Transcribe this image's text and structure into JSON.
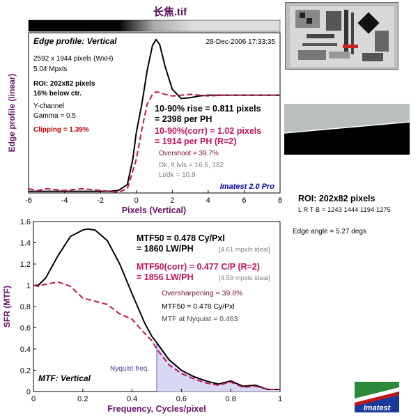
{
  "header": {
    "title": "长焦.tif"
  },
  "edge_chart": {
    "panel_label": "Edge profile: Vertical",
    "timestamp": "28-Dec-2006 17:33:35",
    "info": [
      "2592 x 1944 pixels (WxH)",
      "5.04 Mpxls"
    ],
    "roi_label": "ROI: 202x82 pixels",
    "roi_pos": "16% below ctr.",
    "channel": "Y-channel",
    "gamma": "Gamma = 0.5",
    "clipping": "Clipping =   1.39%",
    "rise1": "10-90% rise = 0.811 pixels",
    "rise2": "= 2398 per PH",
    "corr1": "10-90%(corr) = 1.02 pixels",
    "corr2": "= 1914 per PH   (R=2)",
    "overshoot": "Overshoot = 39.7%",
    "dk": "Dk, lt lvls = 16.6, 182",
    "ltdk": "Lt/dk = 10.9",
    "brand": "Imatest 2.0 Pro"
  },
  "mtf_chart": {
    "panel_label": "MTF: Vertical",
    "mtf50_1": "MTF50 = 0.478 Cy/Pxl",
    "mtf50_2": "= 1860 LW/PH",
    "mtf50_ideal": "[4.61 mpxls ideal]",
    "corr1": "MTF50(corr) = 0.477 C/P   (R=2)",
    "corr2": "= 1856 LW/PH",
    "corr_ideal": "[4.59 mpxls ideal]",
    "oversharp": "Oversharpening = 39.8%",
    "mtf50_small": "MTF50 = 0.478 Cy/Pxl",
    "nyq_mtf": "MTF at Nyquist = 0.463",
    "nyquist_label": "Nyquist freq."
  },
  "side": {
    "roi_head": "ROI: 202x82 pixels",
    "roi_coords": "L R  T B = 1243 1444   1194 1275",
    "edge_angle": "Edge angle = 5.27 degs",
    "logo_text": "Imatest"
  },
  "chart_data": [
    {
      "type": "line",
      "title": "",
      "xlabel": "Pixels (Vertical)",
      "ylabel": "Edge profile (linear)",
      "xlim": [
        -6,
        8
      ],
      "ylim": [
        0,
        1.9
      ],
      "x_ticks": [
        "-6",
        "-4",
        "-2",
        "0",
        "2",
        "4",
        "6",
        "8"
      ],
      "series": [
        {
          "color": "#000000",
          "style": "solid",
          "x": [
            -6,
            -5,
            -4,
            -3,
            -2,
            -1.5,
            -1,
            -0.5,
            -0.2,
            0,
            0.3,
            0.6,
            0.9,
            1.1,
            1.3,
            1.6,
            2,
            2.5,
            3,
            3.5,
            4,
            5,
            6,
            7,
            8
          ],
          "y": [
            0.02,
            0.02,
            0.02,
            0.02,
            0.02,
            0.02,
            0.03,
            0.1,
            0.4,
            0.72,
            1.05,
            1.45,
            1.75,
            1.82,
            1.76,
            1.5,
            1.23,
            1.12,
            1.13,
            1.15,
            1.16,
            1.16,
            1.16,
            1.16,
            1.16
          ]
        },
        {
          "color": "#c0145a",
          "style": "dashed",
          "x": [
            -6,
            -5.5,
            -5,
            -4,
            -3,
            -2,
            -1.5,
            -1,
            -0.5,
            0,
            0.3,
            0.6,
            0.9,
            1.1,
            1.3,
            1.6,
            2,
            2.5,
            3,
            3.5,
            4,
            5,
            6,
            7,
            8
          ],
          "y": [
            0.05,
            0.03,
            0.05,
            0.03,
            0.05,
            0.03,
            0.02,
            0.01,
            0.05,
            0.4,
            0.75,
            1.05,
            1.17,
            1.2,
            1.19,
            1.17,
            1.15,
            1.16,
            1.17,
            1.16,
            1.15,
            1.16,
            1.16,
            1.16,
            1.16
          ]
        }
      ]
    },
    {
      "type": "line",
      "title": "",
      "xlabel": "Frequency, Cycles/pixel",
      "ylabel": "SFR (MTF)",
      "xlim": [
        0,
        1
      ],
      "ylim": [
        0,
        1.6
      ],
      "x_ticks": [
        "0",
        "0.2",
        "0.4",
        "0.6",
        "0.8",
        "1"
      ],
      "y_ticks": [
        "0",
        "0.2",
        "0.4",
        "0.6",
        "0.8",
        "1",
        "1.2",
        "1.4",
        "1.6"
      ],
      "nyquist": 0.5,
      "series": [
        {
          "color": "#000000",
          "style": "solid",
          "x": [
            0,
            0.02,
            0.05,
            0.1,
            0.15,
            0.2,
            0.22,
            0.25,
            0.3,
            0.35,
            0.4,
            0.45,
            0.48,
            0.5,
            0.55,
            0.6,
            0.65,
            0.7,
            0.75,
            0.8,
            0.85,
            0.9,
            0.95,
            1
          ],
          "y": [
            1,
            1,
            1.07,
            1.28,
            1.46,
            1.52,
            1.53,
            1.52,
            1.42,
            1.2,
            0.92,
            0.65,
            0.52,
            0.46,
            0.3,
            0.2,
            0.14,
            0.1,
            0.07,
            0.1,
            0.05,
            0.06,
            0.02,
            0.02
          ]
        },
        {
          "color": "#c0145a",
          "style": "dashed",
          "x": [
            0,
            0.02,
            0.05,
            0.1,
            0.15,
            0.2,
            0.25,
            0.3,
            0.35,
            0.4,
            0.45,
            0.48,
            0.5,
            0.55,
            0.6,
            0.65,
            0.7,
            0.75,
            0.8,
            0.85,
            0.9,
            0.95,
            1
          ],
          "y": [
            1,
            0.99,
            1.01,
            1.03,
            0.99,
            0.88,
            0.85,
            0.82,
            0.73,
            0.68,
            0.55,
            0.48,
            0.4,
            0.25,
            0.17,
            0.12,
            0.08,
            0.06,
            0.09,
            0.04,
            0.05,
            0.02,
            0.02
          ]
        }
      ]
    }
  ]
}
